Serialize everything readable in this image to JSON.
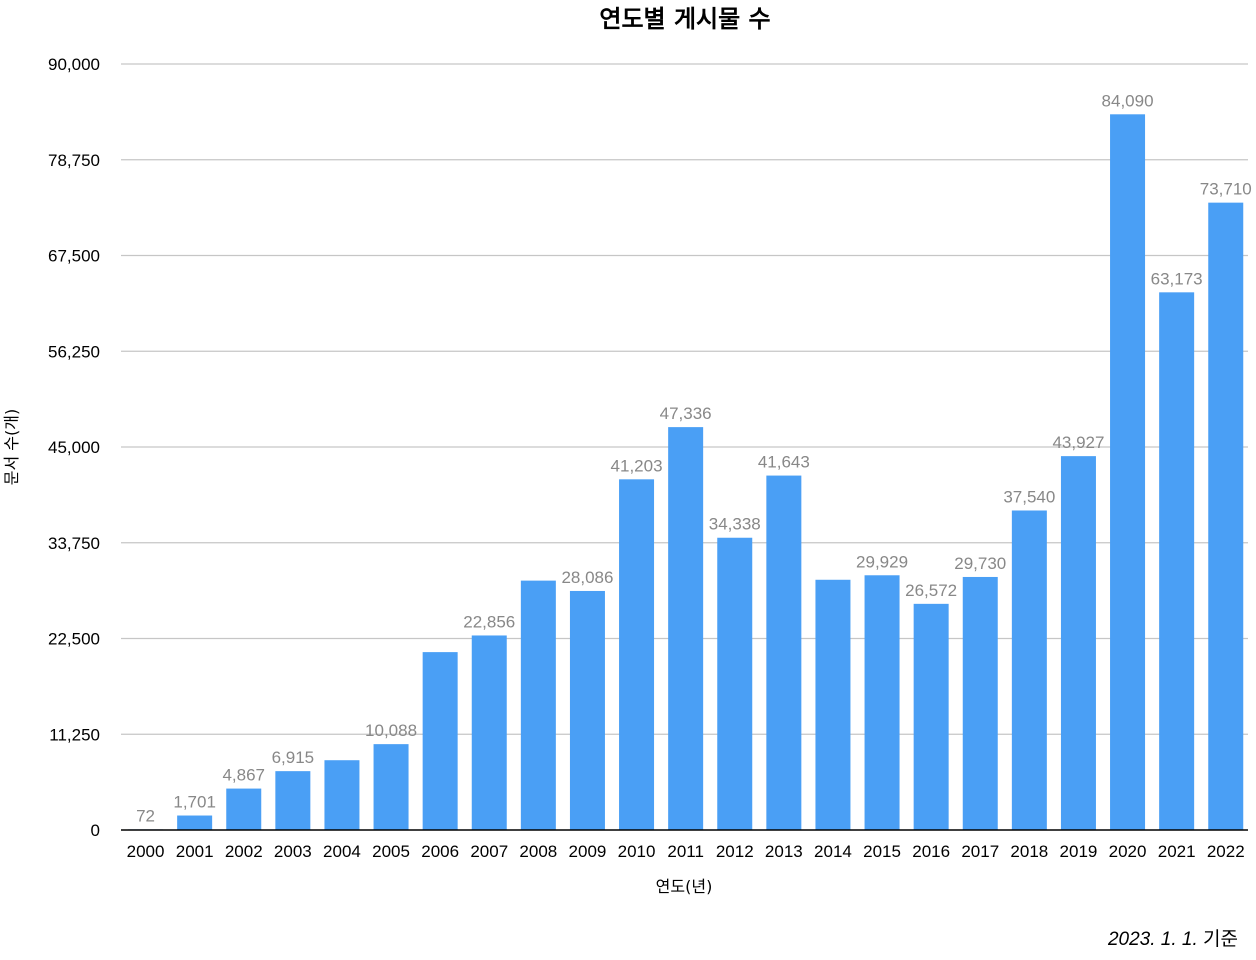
{
  "chart_data": {
    "type": "bar",
    "title": "연도별 게시물 수",
    "xlabel": "연도(년)",
    "ylabel": "문서 수(개)",
    "ylim": [
      0,
      90000
    ],
    "yticks": [
      0,
      11250,
      22500,
      33750,
      45000,
      56250,
      67500,
      78750,
      90000
    ],
    "ytick_labels": [
      "0",
      "11,250",
      "22,500",
      "33,750",
      "45,000",
      "56,250",
      "67,500",
      "78,750",
      "90,000"
    ],
    "grid": true,
    "color": "#4a9ff5",
    "categories": [
      "2000",
      "2001",
      "2002",
      "2003",
      "2004",
      "2005",
      "2006",
      "2007",
      "2008",
      "2009",
      "2010",
      "2011",
      "2012",
      "2013",
      "2014",
      "2015",
      "2016",
      "2017",
      "2018",
      "2019",
      "2020",
      "2021",
      "2022"
    ],
    "values": [
      72,
      1701,
      4867,
      6915,
      8200,
      10088,
      20900,
      22856,
      29300,
      28086,
      41203,
      47336,
      34338,
      41643,
      29400,
      29929,
      26572,
      29730,
      37540,
      43927,
      84090,
      63173,
      73710
    ],
    "data_labels": [
      "72",
      "1,701",
      "4,867",
      "6,915",
      "",
      "10,088",
      "",
      "22,856",
      "",
      "28,086",
      "41,203",
      "47,336",
      "34,338",
      "41,643",
      "",
      "29,929",
      "26,572",
      "29,730",
      "37,540",
      "43,927",
      "84,090",
      "63,173",
      "73,710"
    ]
  },
  "footnote": {
    "date": "2023. 1. 1.",
    "suffix": "기준"
  }
}
